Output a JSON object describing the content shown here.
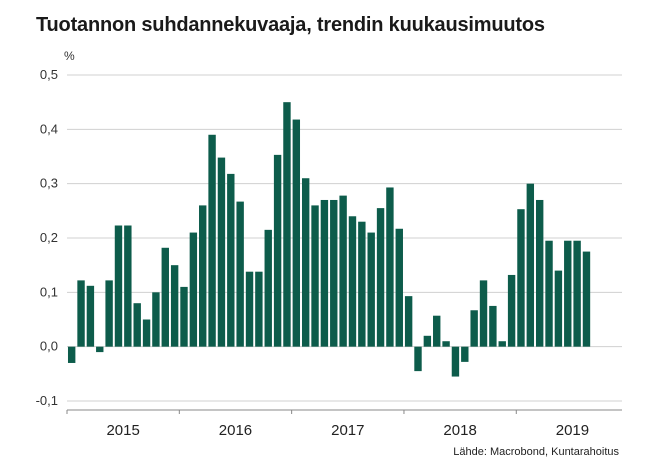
{
  "title": "Tuotannon suhdannekuvaaja, trendin kuukausimuutos",
  "source": "Lähde: Macrobond, Kuntarahoitus",
  "colors": {
    "bar": "#0d5c4b",
    "grid": "#d0d0d0",
    "axis": "#888888"
  },
  "chart_data": {
    "type": "bar",
    "title": "Tuotannon suhdannekuvaaja, trendin kuukausimuutos",
    "ylabel": "%",
    "ylim": [
      -0.1,
      0.5
    ],
    "yticks": [
      "-0,1",
      "0,0",
      "0,1",
      "0,2",
      "0,3",
      "0,4",
      "0,5"
    ],
    "year_labels": [
      "2015",
      "2016",
      "2017",
      "2018",
      "2019"
    ],
    "grid": true,
    "start": "2015-01",
    "values": [
      -0.03,
      0.122,
      0.112,
      -0.01,
      0.122,
      0.223,
      0.223,
      0.08,
      0.05,
      0.1,
      0.182,
      0.15,
      0.11,
      0.21,
      0.26,
      0.39,
      0.348,
      0.318,
      0.267,
      0.138,
      0.138,
      0.215,
      0.353,
      0.45,
      0.418,
      0.31,
      0.26,
      0.27,
      0.27,
      0.278,
      0.24,
      0.23,
      0.21,
      0.255,
      0.293,
      0.217,
      0.093,
      -0.045,
      0.02,
      0.057,
      0.01,
      -0.055,
      -0.028,
      0.067,
      0.122,
      0.075,
      0.01,
      0.132,
      0.253,
      0.3,
      0.27,
      0.195,
      0.14,
      0.195,
      0.195,
      0.175
    ]
  }
}
